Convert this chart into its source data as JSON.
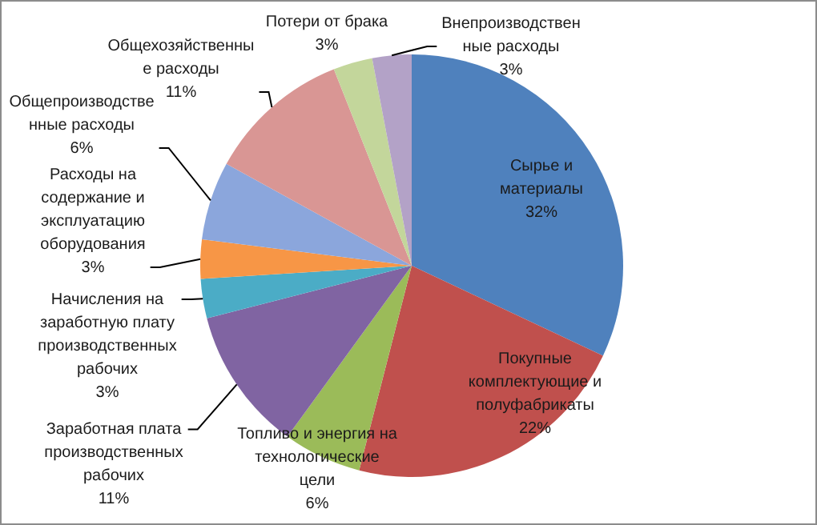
{
  "chart_data": {
    "type": "pie",
    "categories": [
      "Сырье и материалы",
      "Покупные комплектующие и полуфабрикаты",
      "Топливо и энергия на технологические цели",
      "Заработная плата производственных рабочих",
      "Начисления на заработную плату производственных рабочих",
      "Расходы на содержание и эксплуатацию оборудования",
      "Общепроизводственные расходы",
      "Общехозяйственные расходы",
      "Потери от брака",
      "Внепроизводственные расходы"
    ],
    "values": [
      32,
      22,
      6,
      11,
      3,
      3,
      6,
      11,
      3,
      3
    ],
    "colors": [
      "#4f81bd",
      "#c0504d",
      "#9bbb59",
      "#8064a2",
      "#4bacc6",
      "#f79646",
      "#8ba6dc",
      "#d99694",
      "#c3d69b",
      "#b3a2c7"
    ],
    "value_labels": [
      "32%",
      "22%",
      "6%",
      "11%",
      "3%",
      "3%",
      "6%",
      "11%",
      "3%",
      "3%"
    ],
    "legend": false
  }
}
